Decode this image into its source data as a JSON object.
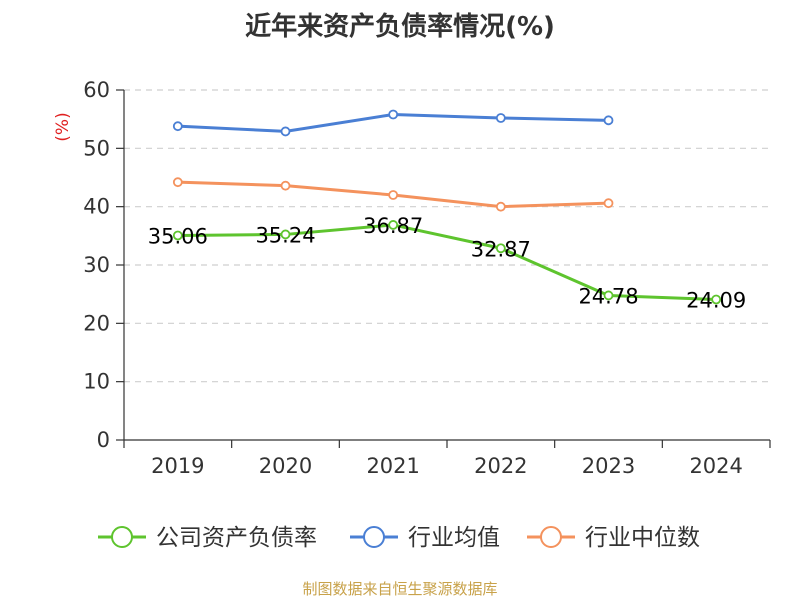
{
  "chart_data": {
    "type": "line",
    "title": "近年来资产负债率情况(%)",
    "ylabel": "(%)",
    "xlabel": "",
    "categories": [
      "2019",
      "2020",
      "2021",
      "2022",
      "2023",
      "2024"
    ],
    "ylim": [
      0,
      60
    ],
    "yticks": [
      0,
      10,
      20,
      30,
      40,
      50,
      60
    ],
    "grid": true,
    "legend_position": "bottom",
    "series": [
      {
        "name": "公司资产负债率",
        "color": "#5ec42e",
        "values": [
          35.06,
          35.24,
          36.87,
          32.87,
          24.78,
          24.09
        ],
        "labels": [
          "35.06",
          "35.24",
          "36.87",
          "32.87",
          "24.78",
          "24.09"
        ]
      },
      {
        "name": "行业均值",
        "color": "#4a7fd4",
        "values": [
          53.8,
          52.9,
          55.8,
          55.2,
          54.8,
          null
        ]
      },
      {
        "name": "行业中位数",
        "color": "#f4925d",
        "values": [
          44.2,
          43.6,
          42.0,
          40.0,
          40.6,
          null
        ]
      }
    ]
  },
  "footer": "制图数据来自恒生聚源数据库"
}
